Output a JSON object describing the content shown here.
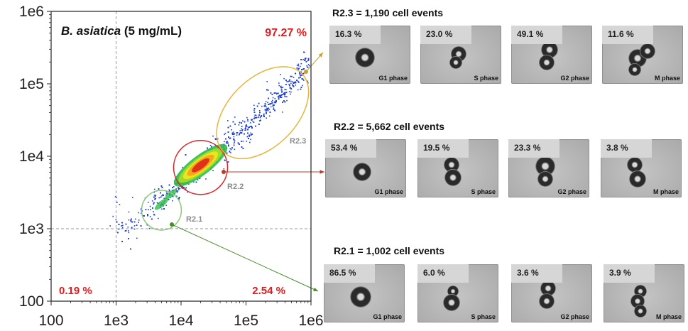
{
  "chart_data": {
    "type": "scatter",
    "title_species": "B. asiatica",
    "title_rest": " (5 mg/mL)",
    "xscale": "log",
    "yscale": "log",
    "xlim": [
      100,
      1000000
    ],
    "ylim": [
      100,
      1000000
    ],
    "xticks": [
      "100",
      "1e3",
      "1e4",
      "1e5",
      "1e6"
    ],
    "yticks": [
      "100",
      "1e3",
      "1e4",
      "1e5",
      "1e6"
    ],
    "gate_x": 1000,
    "gate_y": 1000,
    "quadrant_labels": {
      "upper_right": "97.27 %",
      "lower_left": "0.19 %",
      "lower_right": "2.54 %"
    },
    "regions": [
      {
        "name": "R2.1",
        "center": [
          5000,
          1800
        ],
        "color": "#8dc87a"
      },
      {
        "name": "R2.2",
        "center": [
          20000,
          7000
        ],
        "color": "#d62728"
      },
      {
        "name": "R2.3",
        "center": [
          180000,
          40000
        ],
        "color": "#e8b43a"
      }
    ],
    "density_ridge": [
      [
        1000,
        800
      ],
      [
        5000,
        2500
      ],
      [
        20000,
        7500
      ],
      [
        100000,
        25000
      ],
      [
        500000,
        100000
      ],
      [
        1000000,
        250000
      ]
    ]
  },
  "panels": [
    {
      "title": "R2.3 = 1,190 cell events",
      "cells": [
        {
          "pct": "16.3 %",
          "phase": "G1 phase"
        },
        {
          "pct": "23.0 %",
          "phase": "S phase"
        },
        {
          "pct": "49.1 %",
          "phase": "G2 phase"
        },
        {
          "pct": "11.6 %",
          "phase": "M phase"
        }
      ]
    },
    {
      "title": "R2.2 = 5,662 cell events",
      "cells": [
        {
          "pct": "53.4 %",
          "phase": "G1 phase"
        },
        {
          "pct": "19.5 %",
          "phase": "S phase"
        },
        {
          "pct": "23.3 %",
          "phase": "G2 phase"
        },
        {
          "pct": "3.8 %",
          "phase": "M phase"
        }
      ]
    },
    {
      "title": "R2.1 = 1,002 cell events",
      "cells": [
        {
          "pct": "86.5 %",
          "phase": "G1 phase"
        },
        {
          "pct": "6.0 %",
          "phase": "S phase"
        },
        {
          "pct": "3.6 %",
          "phase": "G2 phase"
        },
        {
          "pct": "3.9 %",
          "phase": "M phase"
        }
      ]
    }
  ]
}
